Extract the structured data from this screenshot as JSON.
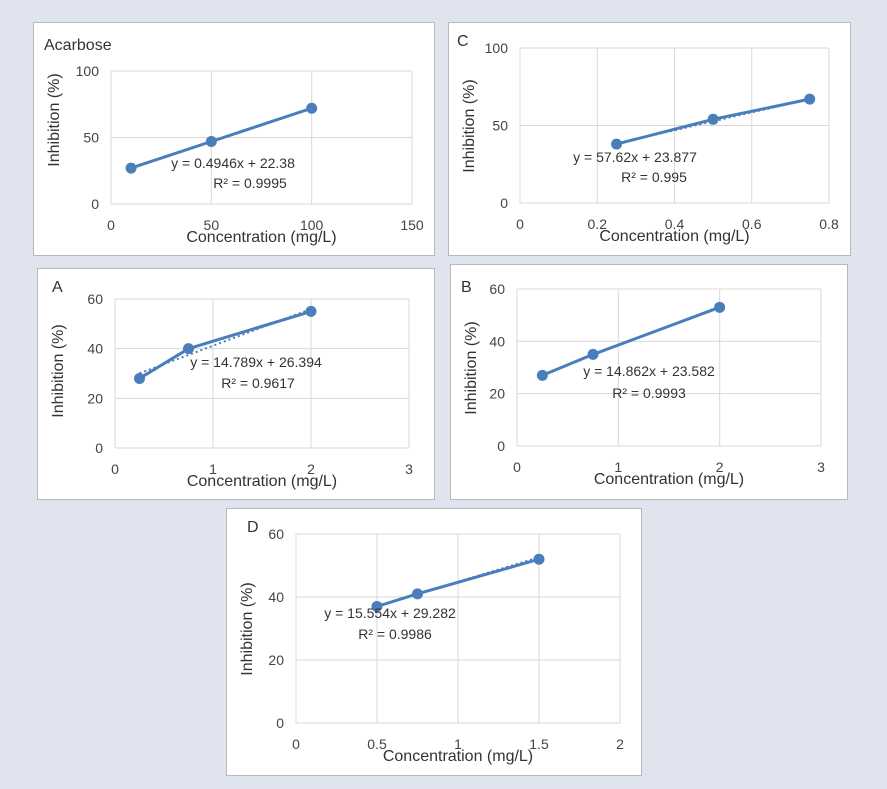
{
  "series_color": "#4a7ebb",
  "grid_color": "#d9d9d9",
  "chart_data": [
    {
      "type": "scatter",
      "panel_label": "Acarbose",
      "xlabel": "Concentration (mg/L)",
      "ylabel": "Inhibition (%)",
      "xlim": [
        0,
        150
      ],
      "ylim": [
        0,
        100
      ],
      "x_ticks": [
        "0",
        "50",
        "100",
        "150"
      ],
      "y_ticks": [
        "0",
        "50",
        "100"
      ],
      "x": [
        10,
        50,
        100
      ],
      "y": [
        27,
        47,
        72
      ],
      "trendline": {
        "slope": 0.4946,
        "intercept": 22.38
      },
      "equation": "y = 0.4946x + 22.38",
      "r2": "R² = 0.9995"
    },
    {
      "type": "scatter",
      "panel_label": "C",
      "xlabel": "Concentration (mg/L)",
      "ylabel": "Inhibition (%)",
      "xlim": [
        0,
        0.8
      ],
      "ylim": [
        0,
        100
      ],
      "x_ticks": [
        "0",
        "0.2",
        "0.4",
        "0.6",
        "0.8"
      ],
      "y_ticks": [
        "0",
        "50",
        "100"
      ],
      "x": [
        0.25,
        0.5,
        0.75
      ],
      "y": [
        38,
        54,
        67
      ],
      "trendline": {
        "slope": 57.62,
        "intercept": 23.877
      },
      "equation": "y = 57.62x + 23.877",
      "r2": "R² = 0.995"
    },
    {
      "type": "scatter",
      "panel_label": "A",
      "xlabel": "Concentration (mg/L)",
      "ylabel": "Inhibition (%)",
      "xlim": [
        0,
        3
      ],
      "ylim": [
        0,
        60
      ],
      "x_ticks": [
        "0",
        "1",
        "2",
        "3"
      ],
      "y_ticks": [
        "0",
        "20",
        "40",
        "60"
      ],
      "x": [
        0.25,
        0.75,
        2
      ],
      "y": [
        28,
        40,
        55
      ],
      "trendline": {
        "slope": 14.789,
        "intercept": 26.394
      },
      "equation": "y = 14.789x + 26.394",
      "r2": "R² = 0.9617"
    },
    {
      "type": "scatter",
      "panel_label": "B",
      "xlabel": "Concentration (mg/L)",
      "ylabel": "Inhibition (%)",
      "xlim": [
        0,
        3
      ],
      "ylim": [
        0,
        60
      ],
      "x_ticks": [
        "0",
        "1",
        "2",
        "3"
      ],
      "y_ticks": [
        "0",
        "20",
        "40",
        "60"
      ],
      "x": [
        0.25,
        0.75,
        2
      ],
      "y": [
        27,
        35,
        53
      ],
      "trendline": {
        "slope": 14.862,
        "intercept": 23.582
      },
      "equation": "y = 14.862x + 23.582",
      "r2": "R² = 0.9993"
    },
    {
      "type": "scatter",
      "panel_label": "D",
      "xlabel": "Concentration (mg/L)",
      "ylabel": "Inhibition (%)",
      "xlim": [
        0,
        2
      ],
      "ylim": [
        0,
        60
      ],
      "x_ticks": [
        "0",
        "0.5",
        "1",
        "1.5",
        "2"
      ],
      "y_ticks": [
        "0",
        "20",
        "40",
        "60"
      ],
      "x": [
        0.5,
        0.75,
        1.5
      ],
      "y": [
        37,
        41,
        52
      ],
      "trendline": {
        "slope": 15.554,
        "intercept": 29.282
      },
      "equation": "y = 15.554x + 29.282",
      "r2": "R² = 0.9986"
    }
  ]
}
